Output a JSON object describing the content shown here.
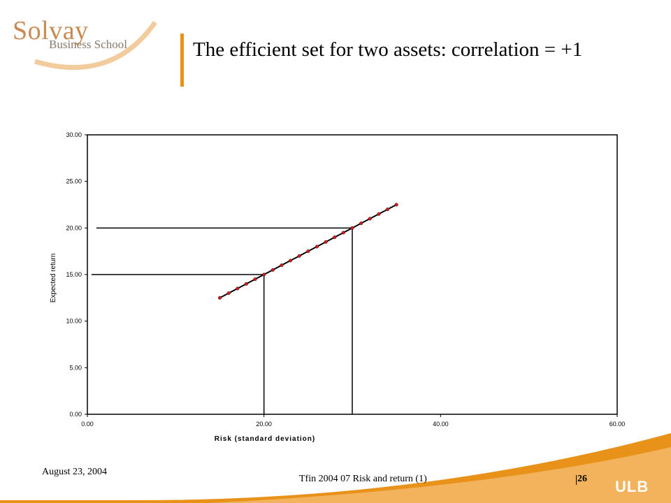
{
  "logo": {
    "main": "Solvay",
    "sub": "Business School"
  },
  "slide": {
    "title": "The efficient set for two assets: correlation = +1"
  },
  "footer": {
    "date": "August 23, 2004",
    "course": "Tfin 2004 07 Risk and return (1)",
    "page": "26",
    "ulb": "ULB"
  },
  "colors": {
    "accent": "#e8921a",
    "marker": "#d9191b",
    "logo_text": "#c98a54"
  },
  "chart_data": {
    "type": "line",
    "title": "",
    "xlabel": "Risk (standard deviation)",
    "ylabel": "Expected return",
    "xlim": [
      0,
      60
    ],
    "ylim": [
      0,
      30
    ],
    "x_ticks": [
      "0.00",
      "20.00",
      "40.00",
      "60.00"
    ],
    "y_ticks": [
      "0.00",
      "5.00",
      "10.00",
      "15.00",
      "20.00",
      "25.00",
      "30.00"
    ],
    "grid": false,
    "legend": "none",
    "series": [
      {
        "x": [
          15,
          16,
          17,
          18,
          19,
          20,
          21,
          22,
          23,
          24,
          25,
          26,
          27,
          28,
          29,
          30,
          31,
          32,
          33,
          34,
          35
        ],
        "y": [
          12.5,
          13,
          13.5,
          14,
          14.5,
          15,
          15.5,
          16,
          16.5,
          17,
          17.5,
          18,
          18.5,
          19,
          19.5,
          20,
          20.5,
          21,
          21.5,
          22,
          22.5
        ]
      }
    ],
    "reference_lines": [
      {
        "x": 20,
        "y": 15
      },
      {
        "x": 30,
        "y": 20
      }
    ]
  }
}
